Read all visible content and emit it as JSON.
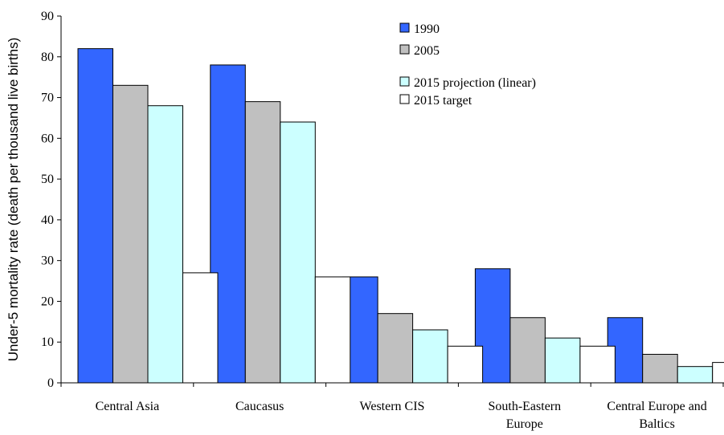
{
  "chart_data": {
    "type": "bar",
    "ylabel": "Under-5 mortality rate (death per thousand live births)",
    "xlabel": "",
    "ylim": [
      0,
      90
    ],
    "yticks": [
      "0",
      "10",
      "20",
      "30",
      "40",
      "50",
      "60",
      "70",
      "80",
      "90"
    ],
    "grid": false,
    "legend_position": "top-right",
    "categories": [
      [
        "Central Asia"
      ],
      [
        "Caucasus"
      ],
      [
        "Western CIS"
      ],
      [
        "South-Eastern",
        "Europe"
      ],
      [
        "Central Europe and",
        "Baltics"
      ]
    ],
    "series": [
      {
        "name": "1990",
        "color": "#3366ff",
        "values": [
          82,
          78,
          26,
          28,
          16
        ]
      },
      {
        "name": "2005",
        "color": "#c0c0c0",
        "values": [
          73,
          69,
          17,
          16,
          7
        ]
      },
      {
        "name": "2015 projection (linear)",
        "color": "#ccffff",
        "values": [
          68,
          64,
          13,
          11,
          4
        ]
      },
      {
        "name": "2015 target",
        "color": "#ffffff",
        "values": [
          27,
          26,
          9,
          9,
          5
        ]
      }
    ]
  }
}
